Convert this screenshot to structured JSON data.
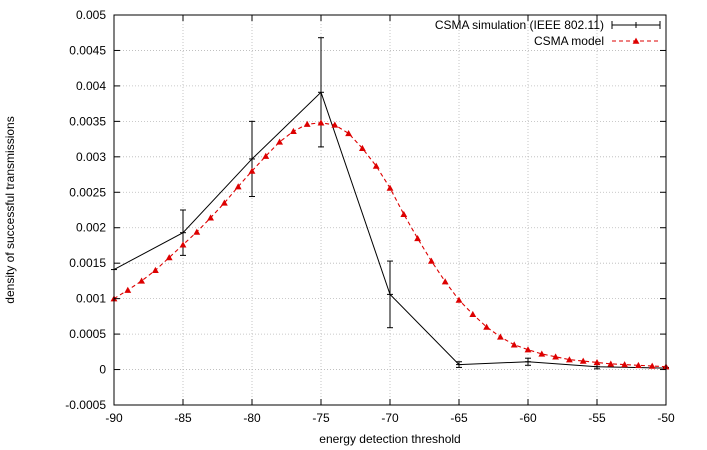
{
  "chart_data": {
    "type": "line",
    "title": "",
    "xlabel": "energy detection threshold",
    "ylabel": "density of successful transmissions",
    "xlim": [
      -90,
      -50
    ],
    "ylim": [
      -0.0005,
      0.005
    ],
    "grid": true,
    "legend_position": "top-right",
    "x_ticks": [
      "-90",
      "-85",
      "-80",
      "-75",
      "-70",
      "-65",
      "-60",
      "-55",
      "-50"
    ],
    "y_ticks": [
      "-0.0005",
      "0",
      "0.0005",
      "0.001",
      "0.0015",
      "0.002",
      "0.0025",
      "0.003",
      "0.0035",
      "0.004",
      "0.0045",
      "0.005"
    ],
    "series": [
      {
        "name": "CSMA simulation (IEEE 802.11)",
        "color": "#000000",
        "marker": "plus",
        "line_style": "solid",
        "points": [
          {
            "x": -90,
            "y": 0.00141,
            "err": 0
          },
          {
            "x": -85,
            "y": 0.00193,
            "err": 0.00032
          },
          {
            "x": -80,
            "y": 0.00297,
            "err": 0.00053
          },
          {
            "x": -75,
            "y": 0.00391,
            "err": 0.00077
          },
          {
            "x": -70,
            "y": 0.00106,
            "err": 0.00047
          },
          {
            "x": -65,
            "y": 7e-05,
            "err": 4e-05
          },
          {
            "x": -60,
            "y": 0.00011,
            "err": 5e-05
          },
          {
            "x": -55,
            "y": 4e-05,
            "err": 3e-05
          },
          {
            "x": -50,
            "y": 2e-05,
            "err": 1e-05
          }
        ]
      },
      {
        "name": "CSMA model",
        "color": "#dd0000",
        "marker": "triangle",
        "line_style": "dashed",
        "x": [
          -90,
          -89,
          -88,
          -87,
          -86,
          -85,
          -84,
          -83,
          -82,
          -81,
          -80,
          -79,
          -78,
          -77,
          -76,
          -75,
          -74,
          -73,
          -72,
          -71,
          -70,
          -69,
          -68,
          -67,
          -66,
          -65,
          -64,
          -63,
          -62,
          -61,
          -60,
          -59,
          -58,
          -57,
          -56,
          -55,
          -54,
          -53,
          -52,
          -51,
          -50
        ],
        "y": [
          0.001,
          0.00112,
          0.00125,
          0.0014,
          0.00158,
          0.00176,
          0.00194,
          0.00214,
          0.00235,
          0.00258,
          0.0028,
          0.00301,
          0.00321,
          0.00336,
          0.00346,
          0.00348,
          0.00345,
          0.00333,
          0.00312,
          0.00287,
          0.00256,
          0.00219,
          0.00185,
          0.00153,
          0.00124,
          0.00098,
          0.00078,
          0.0006,
          0.00046,
          0.00035,
          0.00028,
          0.00022,
          0.00018,
          0.00014,
          0.00012,
          0.0001,
          8e-05,
          7e-05,
          6e-05,
          5e-05,
          4e-05
        ]
      }
    ]
  }
}
